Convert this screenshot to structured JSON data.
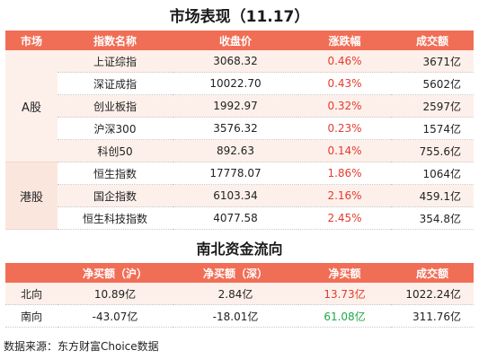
{
  "title1": "市场表现（11.17）",
  "title2": "南北资金流向",
  "market_table": {
    "headers": [
      "市场",
      "指数名称",
      "收盘价",
      "涨跌幅",
      "成交额"
    ],
    "groups": [
      {
        "market": "A股",
        "rows": [
          {
            "name": "上证综指",
            "close": "3068.32",
            "change": "0.46%",
            "turnover": "3671亿"
          },
          {
            "name": "深证成指",
            "close": "10022.70",
            "change": "0.43%",
            "turnover": "5602亿"
          },
          {
            "name": "创业板指",
            "close": "1992.97",
            "change": "0.32%",
            "turnover": "2597亿"
          },
          {
            "name": "沪深300",
            "close": "3576.32",
            "change": "0.23%",
            "turnover": "1574亿"
          },
          {
            "name": "科创50",
            "close": "892.63",
            "change": "0.14%",
            "turnover": "755.6亿"
          }
        ]
      },
      {
        "market": "港股",
        "rows": [
          {
            "name": "恒生指数",
            "close": "17778.07",
            "change": "1.86%",
            "turnover": "1064亿"
          },
          {
            "name": "国企指数",
            "close": "6103.34",
            "change": "2.16%",
            "turnover": "459.1亿"
          },
          {
            "name": "恒生科技指数",
            "close": "4077.58",
            "change": "2.45%",
            "turnover": "354.8亿"
          }
        ]
      }
    ]
  },
  "flow_table": {
    "headers": [
      "",
      "净买额（沪）",
      "净买额（深）",
      "净买额",
      "成交额"
    ],
    "rows": [
      {
        "direction": "北向",
        "sh": "10.89亿",
        "sz": "2.84亿",
        "net": "13.73亿",
        "net_color": "red",
        "turnover": "1022.24亿"
      },
      {
        "direction": "南向",
        "sh": "-43.07亿",
        "sz": "-18.01亿",
        "net": "61.08亿",
        "net_color": "green",
        "turnover": "311.76亿"
      }
    ]
  },
  "source": "数据来源：东方财富Choice数据",
  "colors": {
    "header_bg": "#f16e56",
    "up": "#e33b2e",
    "down": "#1fa84a",
    "stripe": "#fdf0ea"
  }
}
